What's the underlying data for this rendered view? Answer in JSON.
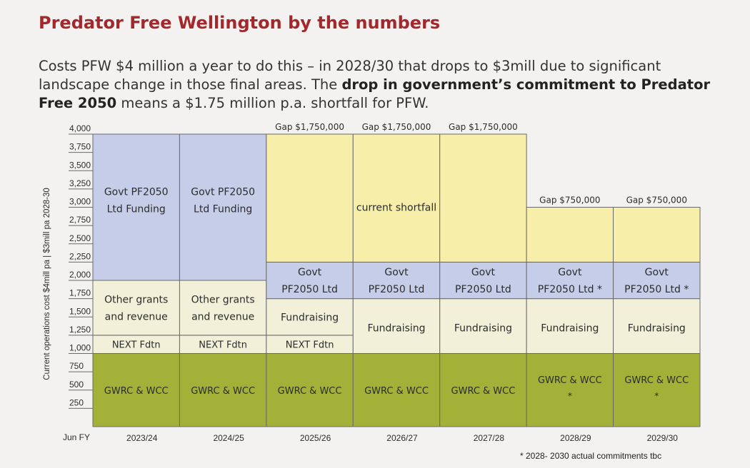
{
  "header": {
    "title": "Predator Free Wellington by the numbers",
    "desc_part1": "Costs PFW $4 million a year to do this – in 2028/30 that drops to $3mill due to significant landscape change in those final areas. The ",
    "desc_bold": "drop in government’s commitment to Predator Free 2050",
    "desc_part2": " means a $1.75 million p.a. shortfall for PFW."
  },
  "footnote": "* 2028- 2030 actual commitments tbc",
  "colors": {
    "gwrc_wcc": "#a3b138",
    "funding_pale": "#f2f0d9",
    "govt_blue": "#c6cde8",
    "gap_yellow": "#f7eeaa",
    "grid_line": "#6a6a6a"
  },
  "chart_data": {
    "type": "bar",
    "stacked": true,
    "ylabel": "Current operations cost $4mill pa | $3mill pa 2028-30",
    "x_axis_start_label": "Jun FY",
    "yticks": [
      "4,000",
      "3,750",
      "3,500",
      "3,250",
      "3,000",
      "2,750",
      "2,500",
      "2,250",
      "2,000",
      "1,750",
      "1,500",
      "1,250",
      "1,000",
      "750",
      "500",
      "250"
    ],
    "ylim": [
      0,
      4000
    ],
    "categories": [
      "2023/24",
      "2024/25",
      "2025/26",
      "2026/27",
      "2027/28",
      "2028/29",
      "2029/30"
    ],
    "columns": [
      {
        "segments": [
          {
            "label": "GWRC & WCC",
            "value": 1000,
            "kind": "gwrc"
          },
          {
            "label": "NEXT Fdtn",
            "value": 250,
            "kind": "pale"
          },
          {
            "label": "Other grants and revenue",
            "value": 750,
            "kind": "pale"
          },
          {
            "label": "Govt PF2050 Ltd Funding",
            "value": 2000,
            "kind": "blue"
          }
        ]
      },
      {
        "segments": [
          {
            "label": "GWRC & WCC",
            "value": 1000,
            "kind": "gwrc"
          },
          {
            "label": "NEXT Fdtn",
            "value": 250,
            "kind": "pale"
          },
          {
            "label": "Other grants and revenue",
            "value": 750,
            "kind": "pale"
          },
          {
            "label": "Govt PF2050 Ltd Funding",
            "value": 2000,
            "kind": "blue"
          }
        ]
      },
      {
        "gap": "Gap $1,750,000",
        "segments": [
          {
            "label": "GWRC & WCC",
            "value": 1000,
            "kind": "gwrc"
          },
          {
            "label": "NEXT Fdtn",
            "value": 250,
            "kind": "pale"
          },
          {
            "label": "Fundraising",
            "value": 500,
            "kind": "pale"
          },
          {
            "label": "Govt PF2050 Ltd",
            "value": 500,
            "kind": "blue"
          },
          {
            "label": "",
            "value": 1750,
            "kind": "yellow"
          }
        ]
      },
      {
        "gap": "Gap $1,750,000",
        "segments": [
          {
            "label": "GWRC & WCC",
            "value": 1000,
            "kind": "gwrc"
          },
          {
            "label": "Fundraising",
            "value": 750,
            "kind": "pale"
          },
          {
            "label": "Govt PF2050 Ltd",
            "value": 500,
            "kind": "blue"
          },
          {
            "label": "current shortfall",
            "value": 1750,
            "kind": "yellow"
          }
        ]
      },
      {
        "gap": "Gap $1,750,000",
        "segments": [
          {
            "label": "GWRC & WCC",
            "value": 1000,
            "kind": "gwrc"
          },
          {
            "label": "Fundraising",
            "value": 750,
            "kind": "pale"
          },
          {
            "label": "Govt PF2050 Ltd",
            "value": 500,
            "kind": "blue"
          },
          {
            "label": "",
            "value": 1750,
            "kind": "yellow"
          }
        ]
      },
      {
        "gap": "Gap $750,000",
        "segments": [
          {
            "label": "GWRC & WCC *",
            "value": 1000,
            "kind": "gwrc"
          },
          {
            "label": "Fundraising",
            "value": 750,
            "kind": "pale"
          },
          {
            "label": "Govt PF2050 Ltd *",
            "value": 500,
            "kind": "blue"
          },
          {
            "label": "",
            "value": 750,
            "kind": "yellow"
          }
        ]
      },
      {
        "gap": "Gap $750,000",
        "segments": [
          {
            "label": "GWRC & WCC *",
            "value": 1000,
            "kind": "gwrc"
          },
          {
            "label": "Fundraising",
            "value": 750,
            "kind": "pale"
          },
          {
            "label": "Govt PF2050 Ltd *",
            "value": 500,
            "kind": "blue"
          },
          {
            "label": "",
            "value": 750,
            "kind": "yellow"
          }
        ]
      }
    ]
  }
}
